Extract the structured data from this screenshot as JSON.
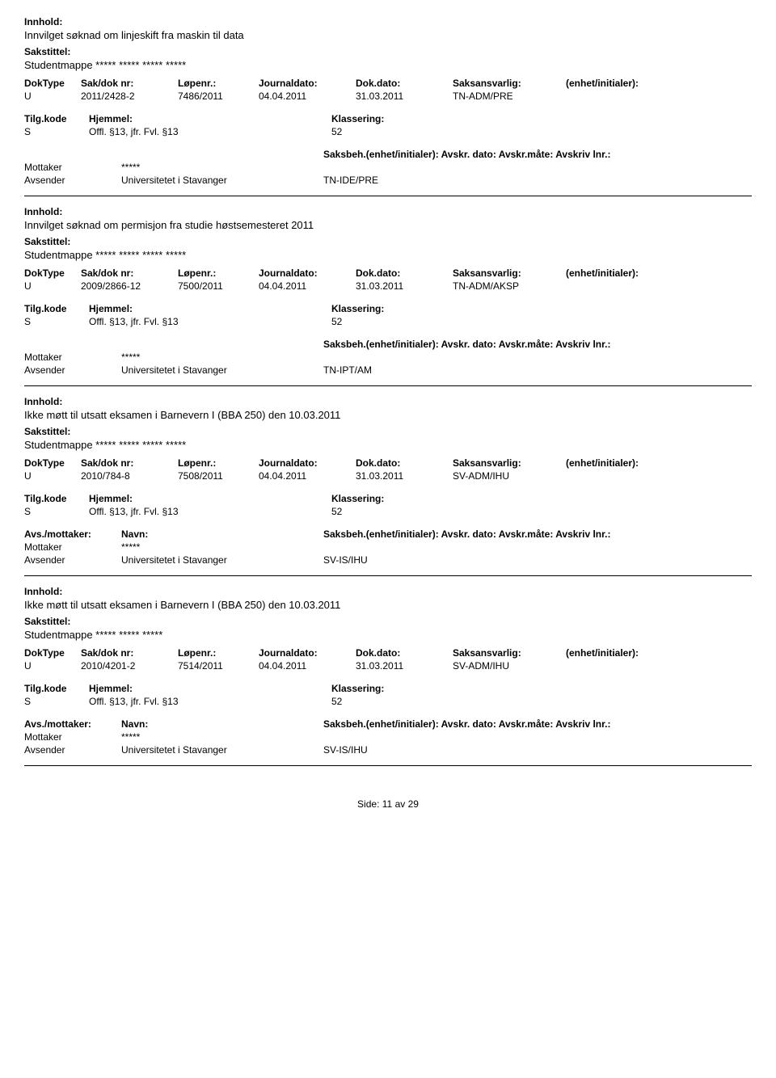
{
  "labels": {
    "innhold": "Innhold:",
    "sakstittel": "Sakstittel:",
    "doktype": "DokType",
    "saknr": "Sak/dok nr:",
    "lopenr": "Løpenr.:",
    "journaldato": "Journaldato:",
    "dokdato": "Dok.dato:",
    "saksansvarlig": "Saksansvarlig:",
    "enhet": "(enhet/initialer):",
    "tilgkode": "Tilg.kode",
    "hjemmel": "Hjemmel:",
    "klassering": "Klassering:",
    "avsmottaker": "Avs./mottaker:",
    "navn": "Navn:",
    "saksbehenhet": "Saksbeh.(enhet/initialer):",
    "avskrdato": "Avskr. dato:",
    "avskrmate": "Avskr.måte:",
    "avskrivlnr": "Avskriv lnr.:",
    "mottaker": "Mottaker",
    "avsender": "Avsender"
  },
  "records": [
    {
      "innhold": "Innvilget søknad om linjeskift fra maskin til data",
      "sakstittel": "Studentmappe ***** ***** ***** *****",
      "doktype": "U",
      "saknr": "2011/2428-2",
      "lopenr": "7486/2011",
      "journaldato": "04.04.2011",
      "dokdato": "31.03.2011",
      "saksansvarlig": "TN-ADM/PRE",
      "enhet": "",
      "tilgkode": "S",
      "hjemmel": "Offl. §13, jfr. Fvl. §13",
      "klassering": "52",
      "mottaker_navn": "*****",
      "avsender_navn": "Universitetet i Stavanger",
      "saksbeh": "TN-IDE/PRE",
      "saksbeh_row_label": "Saksbeh.(enhet/initialer): Avskr. dato:  Avskr.måte:  Avskriv lnr.:",
      "show_avs_header": false
    },
    {
      "innhold": "Innvilget søknad om permisjon fra studie høstsemesteret 2011",
      "sakstittel": "Studentmappe ***** ***** ***** *****",
      "doktype": "U",
      "saknr": "2009/2866-12",
      "lopenr": "7500/2011",
      "journaldato": "04.04.2011",
      "dokdato": "31.03.2011",
      "saksansvarlig": "TN-ADM/AKSP",
      "enhet": "",
      "tilgkode": "S",
      "hjemmel": "Offl. §13, jfr. Fvl. §13",
      "klassering": "52",
      "mottaker_navn": "*****",
      "avsender_navn": "Universitetet i Stavanger",
      "saksbeh": "TN-IPT/AM",
      "saksbeh_row_label": "Saksbeh.(enhet/initialer): Avskr. dato:  Avskr.måte:  Avskriv lnr.:",
      "show_avs_header": false
    },
    {
      "innhold": "Ikke møtt til utsatt eksamen i Barnevern I (BBA 250) den 10.03.2011",
      "sakstittel": "Studentmappe ***** ***** *****  *****",
      "doktype": "U",
      "saknr": "2010/784-8",
      "lopenr": "7508/2011",
      "journaldato": "04.04.2011",
      "dokdato": "31.03.2011",
      "saksansvarlig": "SV-ADM/IHU",
      "enhet": "",
      "tilgkode": "S",
      "hjemmel": "Offl. §13, jfr. Fvl. §13",
      "klassering": "52",
      "mottaker_navn": "*****",
      "avsender_navn": "Universitetet i Stavanger",
      "saksbeh": "SV-IS/IHU",
      "saksbeh_row_label": "Saksbeh.(enhet/initialer): Avskr. dato:  Avskr.måte:  Avskriv lnr.:",
      "show_avs_header": true
    },
    {
      "innhold": "Ikke møtt til utsatt eksamen i Barnevern I (BBA 250) den 10.03.2011",
      "sakstittel": "Studentmappe  ***** *****  *****",
      "doktype": "U",
      "saknr": "2010/4201-2",
      "lopenr": "7514/2011",
      "journaldato": "04.04.2011",
      "dokdato": "31.03.2011",
      "saksansvarlig": "SV-ADM/IHU",
      "enhet": "",
      "tilgkode": "S",
      "hjemmel": "Offl. §13, jfr. Fvl. §13",
      "klassering": "52",
      "mottaker_navn": "*****",
      "avsender_navn": "Universitetet i Stavanger",
      "saksbeh": "SV-IS/IHU",
      "saksbeh_row_label": "Saksbeh.(enhet/initialer): Avskr. dato:  Avskr.måte:  Avskriv lnr.:",
      "show_avs_header": true
    }
  ],
  "footer": {
    "side": "Side:",
    "page_current": "11",
    "page_sep": "av",
    "page_total": "29"
  }
}
